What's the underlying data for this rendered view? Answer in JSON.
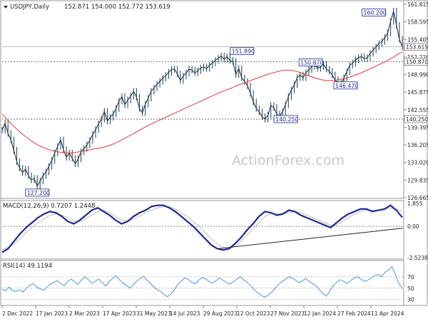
{
  "header": {
    "symbol_label": "USDJPY,Daily",
    "ohlc": "152.871 154.000 152.772 153.619"
  },
  "watermark": "ActionForex.com",
  "colors": {
    "price": "#1f3f52",
    "ma": "#e03a3a",
    "macd_main": "#1b2a8f",
    "macd_signal": "#bcbcbc",
    "rsi": "#4a97e0",
    "annotation_border": "#1b2a8f",
    "axis_text": "#222222"
  },
  "x_axis_labels": [
    "2 Dec 2022",
    "17 Jan 2023",
    "2 Mar 2023",
    "17 Apr 2023",
    "31 May 2023",
    "14 Jul 2023",
    "29 Aug 2023",
    "12 Oct 2023",
    "27 Nov 2023",
    "12 Jan 2024",
    "27 Feb 2024",
    "11 Apr 2024"
  ],
  "chart_data": [
    {
      "type": "line",
      "panel": "price",
      "ylim": [
        126.0,
        161.6
      ],
      "y_ticks": [
        "161.815",
        "158.595",
        "155.405",
        "152.220",
        "148.990",
        "145.875",
        "142.555",
        "139.395",
        "136.205",
        "133.020",
        "129.835",
        "126.665"
      ],
      "current_price_label": "153.619",
      "horizontal_levels": [
        {
          "label": "150.870",
          "value": 150.87,
          "style": "dotted"
        },
        {
          "label": "140.250",
          "value": 140.25,
          "style": "dotted"
        }
      ],
      "annotations": [
        {
          "label": "127.200",
          "x": 8,
          "y": 127.2
        },
        {
          "label": "151.890",
          "x": 82,
          "y": 151.89
        },
        {
          "label": "140.250",
          "x": 96,
          "y": 140.25
        },
        {
          "label": "150.870",
          "x": 107,
          "y": 150.87
        },
        {
          "label": "146.470",
          "x": 116,
          "y": 146.47
        },
        {
          "label": "160.200",
          "x": 132,
          "y": 160.2
        }
      ],
      "series": [
        {
          "values": [
            138.2,
            139.5,
            137.6,
            136.4,
            134.5,
            132.4,
            131.2,
            130.4,
            131.0,
            129.8,
            129.0,
            129.3,
            127.9,
            128.8,
            129.8,
            130.5,
            131.5,
            132.6,
            134.0,
            135.2,
            136.4,
            134.6,
            133.2,
            134.0,
            133.0,
            132.0,
            132.9,
            134.2,
            134.8,
            135.5,
            136.3,
            137.4,
            138.3,
            139.4,
            140.2,
            141.7,
            139.9,
            140.6,
            141.2,
            142.2,
            143.6,
            144.4,
            142.9,
            143.8,
            144.5,
            145.4,
            144.3,
            142.2,
            141.4,
            143.0,
            144.1,
            145.4,
            146.0,
            146.7,
            147.2,
            147.8,
            148.3,
            148.9,
            149.4,
            149.5,
            148.6,
            147.4,
            148.2,
            148.8,
            149.5,
            149.3,
            148.8,
            149.2,
            149.7,
            149.9,
            149.6,
            150.2,
            150.6,
            151.1,
            151.5,
            151.9,
            151.3,
            151.8,
            151.1,
            150.9,
            148.5,
            149.6,
            147.9,
            147.2,
            146.4,
            145.0,
            143.4,
            142.2,
            141.6,
            140.7,
            140.25,
            141.0,
            142.8,
            142.4,
            141.2,
            140.8,
            141.6,
            142.9,
            144.4,
            145.6,
            146.6,
            147.9,
            148.4,
            147.9,
            148.8,
            149.4,
            150.0,
            150.4,
            149.6,
            149.9,
            150.4,
            149.5,
            149.1,
            148.4,
            147.5,
            146.9,
            146.5,
            147.9,
            149.0,
            150.2,
            150.6,
            151.2,
            151.6,
            151.8,
            151.4,
            151.6,
            152.4,
            153.0,
            153.6,
            154.2,
            154.6,
            155.3,
            156.2,
            158.3,
            160.2,
            157.6,
            155.0,
            153.6
          ]
        },
        {
          "name": "MA",
          "values": [
            141.2,
            140.0,
            138.9,
            137.9,
            137.0,
            136.2,
            135.5,
            135.0,
            134.6,
            134.3,
            134.1,
            134.0,
            134.0,
            134.2,
            134.4,
            134.6,
            134.8,
            135.0,
            135.3,
            135.7,
            136.2,
            136.8,
            137.4,
            138.0,
            138.6,
            139.2,
            139.7,
            140.2,
            140.7,
            141.2,
            141.7,
            142.2,
            142.7,
            143.2,
            143.7,
            144.2,
            144.7,
            145.2,
            145.6,
            146.0,
            146.5,
            146.9,
            147.3,
            147.7,
            148.1,
            148.5,
            148.8,
            149.1,
            149.3,
            149.3,
            149.1,
            148.7,
            148.3,
            147.9,
            147.6,
            147.4,
            147.4,
            147.5,
            147.7,
            148.0,
            148.4,
            148.8,
            149.3,
            149.8,
            150.3,
            150.8,
            151.4,
            152.1,
            152.7
          ]
        }
      ]
    },
    {
      "type": "line",
      "panel": "macd",
      "title": "MACD(12,26,9) 0.7207 1.2448",
      "ylim": [
        -2.5238,
        1.855
      ],
      "y_ticks": [
        "1.855",
        "0.00",
        "-2.5238"
      ],
      "series": [
        {
          "values": [
            -2.1,
            -1.8,
            -1.2,
            -0.6,
            -0.1,
            0.3,
            0.7,
            1.0,
            1.2,
            1.1,
            0.8,
            0.4,
            0.2,
            0.5,
            0.9,
            1.3,
            1.5,
            1.2,
            0.9,
            0.5,
            0.2,
            0.4,
            0.8,
            1.1,
            1.3,
            1.6,
            1.7,
            1.7,
            1.5,
            1.2,
            0.8,
            0.4,
            0.0,
            -0.5,
            -1.0,
            -1.5,
            -1.8,
            -1.9,
            -1.8,
            -1.4,
            -0.9,
            -0.3,
            0.2,
            0.8,
            1.2,
            1.1,
            0.9,
            1.0,
            1.3,
            1.2,
            0.9,
            0.7,
            0.5,
            0.3,
            0.1,
            -0.1,
            0.3,
            0.7,
            1.0,
            1.2,
            1.4,
            1.4,
            1.2,
            1.3,
            1.4,
            1.7,
            1.3,
            0.72
          ]
        },
        {
          "values": [
            -1.9,
            -1.7,
            -1.4,
            -1.0,
            -0.5,
            -0.1,
            0.3,
            0.6,
            0.9,
            1.0,
            0.9,
            0.7,
            0.4,
            0.4,
            0.6,
            0.9,
            1.2,
            1.3,
            1.1,
            0.8,
            0.5,
            0.4,
            0.6,
            0.8,
            1.1,
            1.3,
            1.5,
            1.6,
            1.6,
            1.4,
            1.1,
            0.8,
            0.4,
            0.0,
            -0.5,
            -1.0,
            -1.4,
            -1.7,
            -1.8,
            -1.6,
            -1.2,
            -0.7,
            -0.2,
            0.3,
            0.8,
            1.0,
            1.0,
            1.0,
            1.1,
            1.2,
            1.1,
            0.9,
            0.7,
            0.5,
            0.3,
            0.1,
            0.1,
            0.4,
            0.7,
            1.0,
            1.2,
            1.3,
            1.3,
            1.3,
            1.4,
            1.5,
            1.4,
            1.24
          ]
        }
      ],
      "trendline": [
        [
          0.27,
          -1.8
        ],
        [
          0.68,
          -0.15
        ]
      ]
    },
    {
      "type": "line",
      "panel": "rsi",
      "title": "RSI(14) 49.1194",
      "ylim": [
        22,
        95
      ],
      "y_ticks": [
        "70",
        "50",
        "30"
      ],
      "series": [
        {
          "values": [
            48,
            45,
            52,
            46,
            44,
            47,
            43,
            50,
            55,
            58,
            52,
            49,
            46,
            52,
            57,
            60,
            63,
            58,
            54,
            62,
            66,
            61,
            57,
            64,
            70,
            65,
            58,
            62,
            66,
            60,
            54,
            61,
            67,
            72,
            65,
            59,
            55,
            50,
            56,
            62,
            67,
            71,
            64,
            58,
            52,
            47,
            44,
            38,
            35,
            40,
            48,
            57,
            63,
            68,
            65,
            60,
            58,
            64,
            69,
            66,
            62,
            59,
            63,
            68,
            64,
            60,
            57,
            61,
            66,
            70,
            65,
            60,
            55,
            48,
            42,
            38,
            34,
            37,
            42,
            49,
            56,
            61,
            65,
            70,
            68,
            64,
            60,
            63,
            67,
            62,
            58,
            54,
            47,
            40,
            36,
            45,
            55,
            60,
            65,
            62,
            58,
            63,
            68,
            70,
            66,
            62,
            64,
            68,
            72,
            74,
            70,
            78,
            82,
            88,
            74,
            58,
            49
          ]
        }
      ]
    }
  ]
}
